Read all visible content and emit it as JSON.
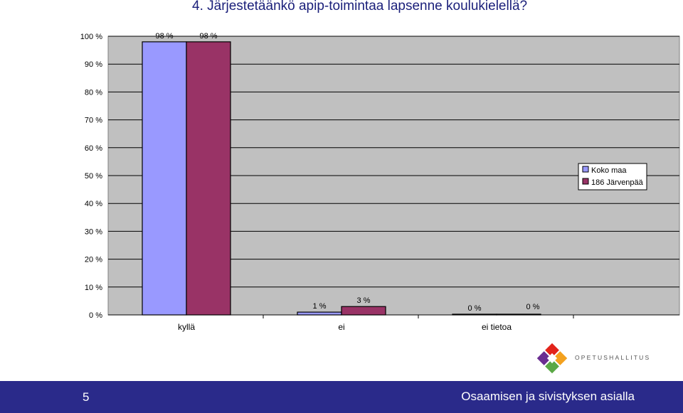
{
  "slide": {
    "title": "4. Järjestetäänkö apip-toimintaa lapsenne koulukielellä?",
    "number": "5",
    "footer_text": "Osaamisen ja sivistyksen asialla",
    "logo_text": "OPETUSHALLITUS"
  },
  "colors": {
    "plot_background": "#c0c0c0",
    "series_1": "#9999ff",
    "series_2": "#993366",
    "footer_bar": "#2a2a8a",
    "title": "#1a1f7a"
  },
  "chart_data": {
    "type": "bar",
    "categories": [
      "kyllä",
      "ei",
      "ei tietoa"
    ],
    "series": [
      {
        "name": "Koko maa",
        "values": [
          98,
          1,
          0
        ],
        "labels": [
          "98 %",
          "1 %",
          "0 %"
        ]
      },
      {
        "name": "186  Järvenpää",
        "values": [
          98,
          3,
          0
        ],
        "labels": [
          "98 %",
          "3 %",
          "0 %"
        ]
      }
    ],
    "ylim": [
      0,
      100
    ],
    "yticks": [
      0,
      10,
      20,
      30,
      40,
      50,
      60,
      70,
      80,
      90,
      100
    ],
    "ytick_labels": [
      "0 %",
      "10 %",
      "20 %",
      "30 %",
      "40 %",
      "50 %",
      "60 %",
      "70 %",
      "80 %",
      "90 %",
      "100 %"
    ],
    "grid": true,
    "legend_position": "right"
  }
}
